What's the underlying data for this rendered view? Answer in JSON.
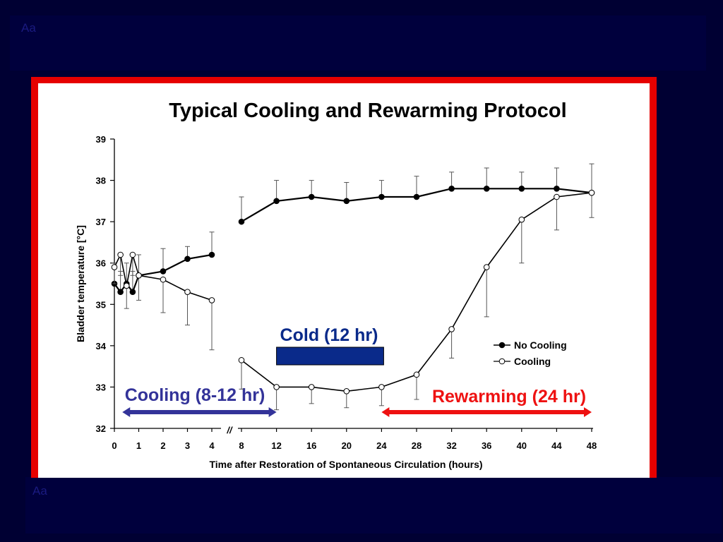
{
  "slide": {
    "placeholder_top": "Aa",
    "placeholder_bottom": "Aa"
  },
  "chart_data": {
    "type": "line",
    "title": "Typical Cooling and Rewarming Protocol",
    "xlabel": "Time after Restoration of Spontaneous Circulation (hours)",
    "ylabel": "Bladder temperature [°C]",
    "ylim": [
      32,
      39
    ],
    "yticks": [
      "32",
      "33",
      "34",
      "35",
      "36",
      "37",
      "38",
      "39"
    ],
    "xticks": [
      "0",
      "1",
      "2",
      "3",
      "4",
      "8",
      "12",
      "16",
      "20",
      "24",
      "28",
      "32",
      "36",
      "40",
      "44",
      "48"
    ],
    "axis_break": "//",
    "series": [
      {
        "name": "No Cooling",
        "marker": "filled",
        "segments": [
          [
            {
              "x": 0,
              "y": 35.5,
              "err": 0.5
            },
            {
              "x": 0.25,
              "y": 35.3,
              "err": 0.5
            },
            {
              "x": 0.5,
              "y": 35.5,
              "err": 0.5
            },
            {
              "x": 0.75,
              "y": 35.3,
              "err": 0.5
            },
            {
              "x": 1,
              "y": 35.7,
              "err": 0.5
            },
            {
              "x": 2,
              "y": 35.8,
              "err": 0.55
            },
            {
              "x": 3,
              "y": 36.1,
              "err": 0.3
            },
            {
              "x": 4,
              "y": 36.2,
              "err": 0.55
            }
          ],
          [
            {
              "x": 8,
              "y": 37.0,
              "err": 0.6
            },
            {
              "x": 12,
              "y": 37.5,
              "err": 0.5
            },
            {
              "x": 16,
              "y": 37.6,
              "err": 0.4
            },
            {
              "x": 20,
              "y": 37.5,
              "err": 0.45
            },
            {
              "x": 24,
              "y": 37.6,
              "err": 0.4
            },
            {
              "x": 28,
              "y": 37.6,
              "err": 0.5
            },
            {
              "x": 32,
              "y": 37.8,
              "err": 0.4
            },
            {
              "x": 36,
              "y": 37.8,
              "err": 0.5
            },
            {
              "x": 40,
              "y": 37.8,
              "err": 0.4
            },
            {
              "x": 44,
              "y": 37.8,
              "err": 0.5
            },
            {
              "x": 48,
              "y": 37.7,
              "err": 0.7
            }
          ]
        ]
      },
      {
        "name": "Cooling",
        "marker": "open",
        "segments": [
          [
            {
              "x": 0,
              "y": 35.9,
              "err": 0.4
            },
            {
              "x": 0.25,
              "y": 36.2,
              "err": 0.5
            },
            {
              "x": 0.5,
              "y": 35.45,
              "err": 0.55
            },
            {
              "x": 0.75,
              "y": 36.2,
              "err": 0.5
            },
            {
              "x": 1,
              "y": 35.7,
              "err": 0.6
            },
            {
              "x": 2,
              "y": 35.6,
              "err": 0.8
            },
            {
              "x": 3,
              "y": 35.3,
              "err": 0.8
            },
            {
              "x": 4,
              "y": 35.1,
              "err": 1.2
            }
          ],
          [
            {
              "x": 8,
              "y": 33.65,
              "err": 0.7
            },
            {
              "x": 12,
              "y": 33.0,
              "err": 0.55
            },
            {
              "x": 16,
              "y": 33.0,
              "err": 0.4
            },
            {
              "x": 20,
              "y": 32.9,
              "err": 0.4
            },
            {
              "x": 24,
              "y": 33.0,
              "err": 0.45
            },
            {
              "x": 28,
              "y": 33.3,
              "err": 0.6
            },
            {
              "x": 32,
              "y": 34.4,
              "err": 0.7
            },
            {
              "x": 36,
              "y": 35.9,
              "err": 1.2
            },
            {
              "x": 40,
              "y": 37.05,
              "err": 1.05
            },
            {
              "x": 44,
              "y": 37.6,
              "err": 0.8
            },
            {
              "x": 48,
              "y": 37.7,
              "err": 0.6
            }
          ]
        ]
      }
    ],
    "legend": {
      "position": "lower-right",
      "items": [
        "No Cooling",
        "Cooling"
      ]
    },
    "annotations": {
      "cold": {
        "label": "Cold (12 hr)",
        "color": "#0a2a8a",
        "from_x": 12,
        "to_x": 24
      },
      "cooling": {
        "label": "Cooling (8-12 hr)",
        "color": "#333399",
        "from_x": 0.5,
        "to_x": 12
      },
      "rewarming": {
        "label": "Rewarming (24 hr)",
        "color": "#ee1111",
        "from_x": 24,
        "to_x": 48
      }
    },
    "colors": {
      "background": "#000033",
      "frame": "#e60000",
      "plot_background": "#ffffff",
      "lines": "#000000"
    }
  }
}
